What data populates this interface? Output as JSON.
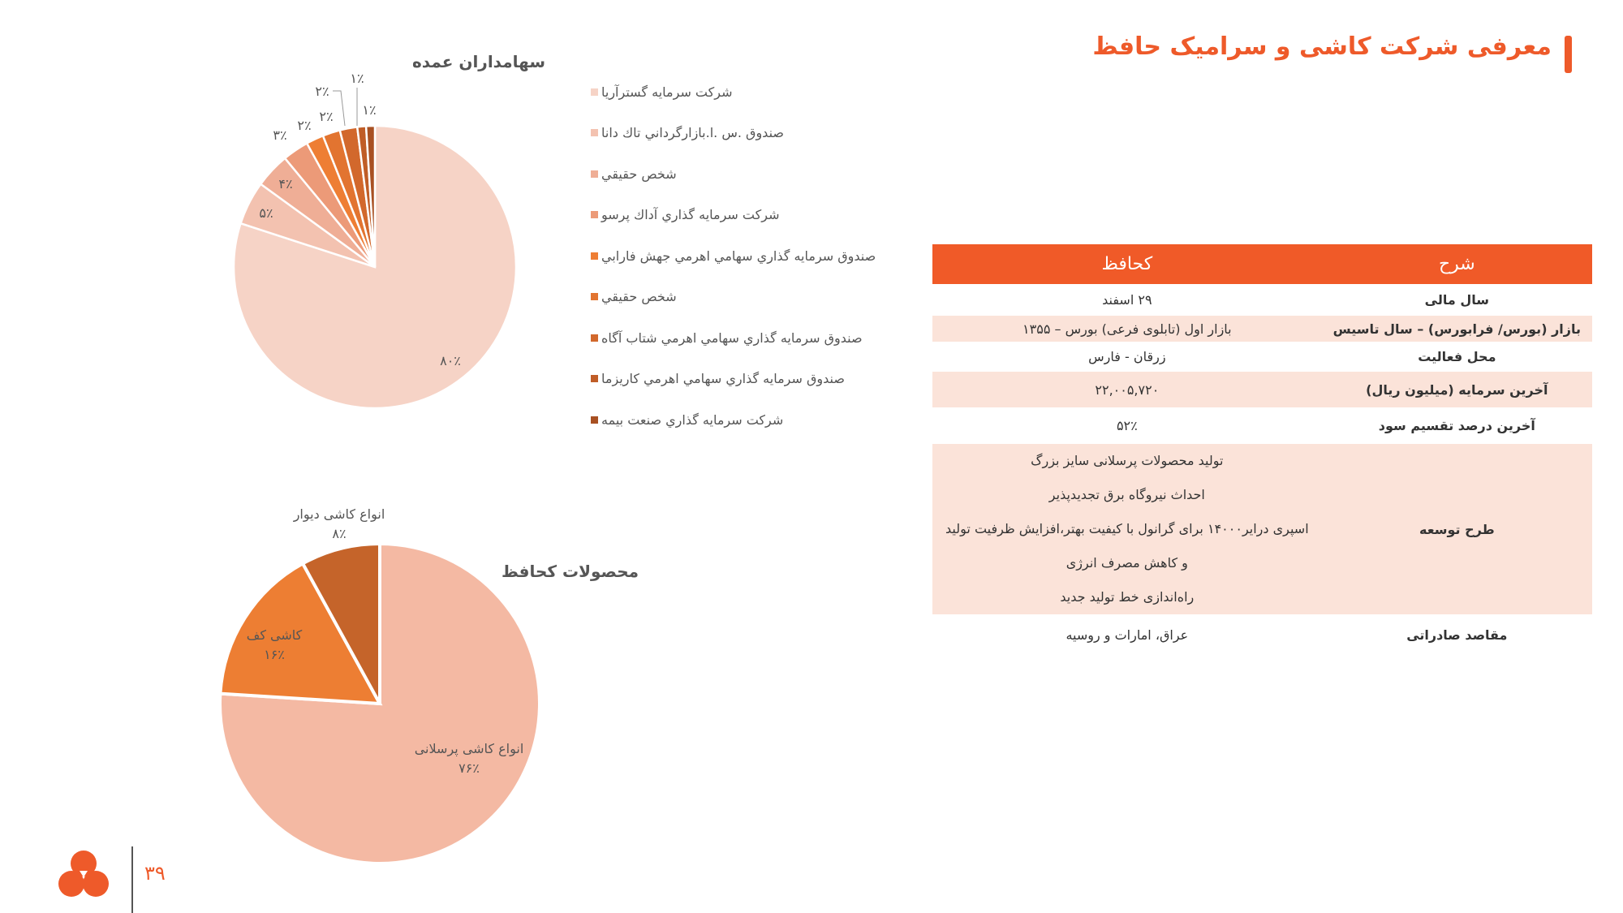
{
  "header": {
    "title": "معرفی شرکت کاشی و سرامیک حافظ",
    "accent_color": "#ee5a2a"
  },
  "table": {
    "headers": [
      "شرح",
      "کحافظ"
    ],
    "rows": [
      {
        "label": "سال مالی",
        "value": [
          "۲۹ اسفند"
        ]
      },
      {
        "label": "بازار (بورس/ فرابورس) – سال تاسیس",
        "value": [
          "بازار اول (تابلوی فرعی) بورس – ۱۳۵۵"
        ]
      },
      {
        "label": "محل فعالیت",
        "value": [
          "زرقان - فارس"
        ]
      },
      {
        "label": "آخرین سرمایه (میلیون ریال)",
        "value": [
          "۲۲,۰۰۵,۷۲۰"
        ]
      },
      {
        "label": "آخرین درصد تقسیم سود",
        "value": [
          "۵۲٪"
        ]
      },
      {
        "label": "طرح توسعه",
        "value": [
          "تولید محصولات پرسلانی سایز بزرگ",
          "احداث نیروگاه برق تجدیدپذیر",
          "اسپری درایر۱۴۰۰۰ برای گرانول با کیفیت بهتر،افزایش ظرفیت تولید",
          "و کاهش مصرف انرژی",
          "راه‌اندازی خط تولید جدید"
        ]
      },
      {
        "label": "مقاصد صادراتی",
        "value": [
          "عراق، امارات و روسیه"
        ]
      }
    ]
  },
  "chart_data": [
    {
      "type": "pie",
      "title": "سهامداران عمده",
      "legend_position": "right",
      "categories": [
        "شرکت سرمایه گسترآریا",
        "صندوق .س .ا.بازارگرداني تاك دانا",
        "شخص حقيقي",
        "شركت سرمايه گذاري آداك پرسو",
        "صندوق سرمايه گذاري سهامي اهرمي جهش فارابي",
        "شخص حقيقي",
        "صندوق سرمايه گذاري سهامي اهرمي شتاب آگاه",
        "صندوق سرمايه گذاري سهامي اهرمي كاريزما",
        "شركت سرمايه گذاري صنعت بيمه"
      ],
      "values": [
        80,
        5,
        4,
        3,
        2,
        2,
        2,
        1,
        1
      ],
      "labels": [
        "۸۰٪",
        "۵٪",
        "۴٪",
        "۳٪",
        "۲٪",
        "۲٪",
        "۲٪",
        "۱٪",
        "۱٪"
      ],
      "colors": [
        "#f6d3c6",
        "#f3c2b0",
        "#efae96",
        "#ec9a78",
        "#ee7e34",
        "#e27430",
        "#d2682c",
        "#c05d27",
        "#a85022"
      ]
    },
    {
      "type": "pie",
      "title": "محصولات کحافظ",
      "categories": [
        "انواع کاشی پرسلانی",
        "کاشی کف",
        "انواع کاشی دیوار"
      ],
      "values": [
        76,
        16,
        8
      ],
      "labels": [
        "۷۶٪",
        "۱۶٪",
        "۸٪"
      ],
      "colors": [
        "#f4b9a3",
        "#ed7e33",
        "#c5642a"
      ]
    }
  ],
  "footer": {
    "page_number": "۳۹",
    "logo_color": "#ee5a2a"
  }
}
